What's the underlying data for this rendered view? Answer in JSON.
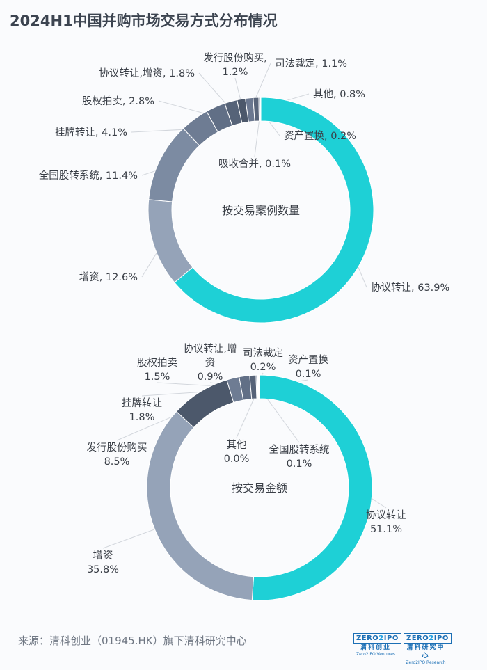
{
  "title": "2024H1中国并购市场交易方式分布情况",
  "source": "来源：清科创业（01945.HK）旗下清科研究中心",
  "logos": [
    {
      "badge_left": "ZERO",
      "badge_mid": "2",
      "badge_right": "IPO",
      "cn": "清科创业",
      "en": "Zero2IPO Ventures"
    },
    {
      "badge_left": "ZERO",
      "badge_mid": "2",
      "badge_right": "IPO",
      "cn": "清科研究中心",
      "en": "Zero2IPO Research"
    }
  ],
  "colors": {
    "协议转让": "#1ed0d6",
    "增资": "#95a3b8",
    "全国股转系统": "#7c8ba2",
    "挂牌转让": "#6e7c93",
    "股权拍卖": "#616f86",
    "协议转让,增资": "#566378",
    "发行股份购买": "#4c586b",
    "司法裁定": "#6b7890",
    "其他": "#59657a",
    "资产置换": "#8593a8",
    "吸收合并": "#a6b2c3"
  },
  "chart_data": [
    {
      "type": "donut",
      "center_label": "按交易案例数量",
      "categories": [
        "协议转让",
        "增资",
        "全国股转系统",
        "挂牌转让",
        "股权拍卖",
        "协议转让,增资",
        "发行股份购买",
        "司法裁定",
        "其他",
        "资产置换",
        "吸收合并"
      ],
      "values": [
        63.9,
        12.6,
        11.4,
        4.1,
        2.8,
        1.8,
        1.2,
        1.1,
        0.8,
        0.2,
        0.1
      ],
      "labels": [
        [
          "协议转让, 63.9%"
        ],
        [
          "增资, 12.6%"
        ],
        [
          "全国股转系统, 11.4%"
        ],
        [
          "挂牌转让, 4.1%"
        ],
        [
          "股权拍卖, 2.8%"
        ],
        [
          "协议转让,增资, 1.8%"
        ],
        [
          "发行股份购买,",
          "1.2%"
        ],
        [
          "司法裁定, 1.1%"
        ],
        [
          "其他, 0.8%"
        ],
        [
          "资产置换, 0.2%"
        ],
        [
          "吸收合并, 0.1%"
        ]
      ]
    },
    {
      "type": "donut",
      "center_label": "按交易金额",
      "categories": [
        "协议转让",
        "增资",
        "发行股份购买",
        "挂牌转让",
        "股权拍卖",
        "协议转让,增资",
        "司法裁定",
        "资产置换",
        "全国股转系统",
        "其他"
      ],
      "values": [
        51.1,
        35.8,
        8.5,
        1.8,
        1.5,
        0.9,
        0.2,
        0.1,
        0.1,
        0.0
      ],
      "labels": [
        [
          "协议转让",
          "51.1%"
        ],
        [
          "增资",
          "35.8%"
        ],
        [
          "发行股份购买",
          "8.5%"
        ],
        [
          "挂牌转让",
          "1.8%"
        ],
        [
          "股权拍卖",
          "1.5%"
        ],
        [
          "协议转让,增",
          "资",
          "0.9%"
        ],
        [
          "司法裁定",
          "0.2%"
        ],
        [
          "资产置换",
          "0.1%"
        ],
        [
          "全国股转系统",
          "0.1%"
        ],
        [
          "其他",
          "0.0%"
        ]
      ]
    }
  ]
}
